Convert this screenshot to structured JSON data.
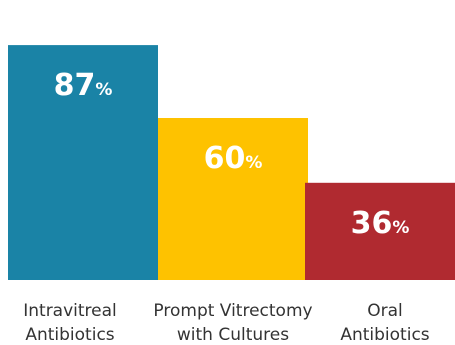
{
  "chart_data": {
    "type": "bar",
    "categories": [
      [
        "Intravitreal",
        "Antibiotics"
      ],
      [
        "Prompt Vitrectomy",
        "with Cultures"
      ],
      [
        "Oral",
        "Antibiotics"
      ]
    ],
    "values": [
      87,
      60,
      36
    ],
    "value_suffix": "%",
    "colors": [
      "#1a83a6",
      "#fec200",
      "#b02a30"
    ],
    "ylim": [
      0,
      100
    ],
    "legend": "none",
    "grid": false
  }
}
